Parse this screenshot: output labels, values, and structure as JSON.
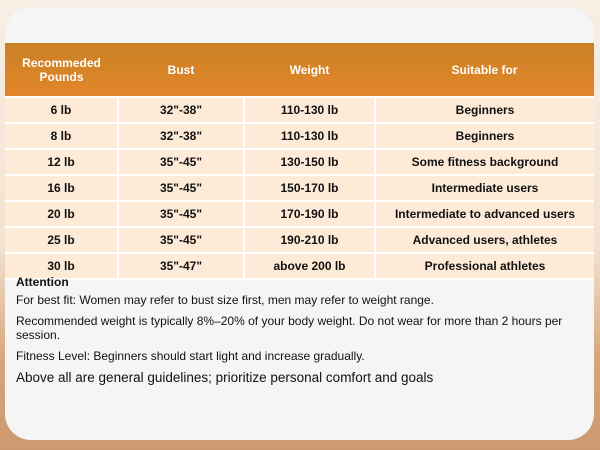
{
  "table": {
    "headers": [
      "Recommeded Pounds",
      "Bust",
      "Weight",
      "Suitable for"
    ],
    "rows": [
      [
        "6 lb",
        "32\"-38\"",
        "110-130 lb",
        "Beginners"
      ],
      [
        "8 lb",
        "32\"-38\"",
        "110-130 lb",
        "Beginners"
      ],
      [
        "12 lb",
        "35\"-45\"",
        "130-150 lb",
        "Some fitness background"
      ],
      [
        "16 lb",
        "35\"-45\"",
        "150-170 lb",
        "Intermediate users"
      ],
      [
        "20 lb",
        "35\"-45\"",
        "170-190 lb",
        "Intermediate to advanced users"
      ],
      [
        "25 lb",
        "35\"-45\"",
        "190-210 lb",
        "Advanced users, athletes"
      ],
      [
        "30 lb",
        "35\"-47\"",
        "above 200 lb",
        "Professional athletes"
      ]
    ]
  },
  "notes": {
    "title": "Attention",
    "lines": [
      "For best fit: Women may refer to bust size first, men may refer to weight range.",
      "Recommended weight is typically 8%–20% of your body weight. Do not wear for more than 2 hours per session.",
      "Fitness Level: Beginners should start light and increase gradually.",
      "Above all are general guidelines; prioritize personal comfort and goals"
    ]
  },
  "colors": {
    "header": "#e0832a",
    "row": "#fdebd8"
  }
}
